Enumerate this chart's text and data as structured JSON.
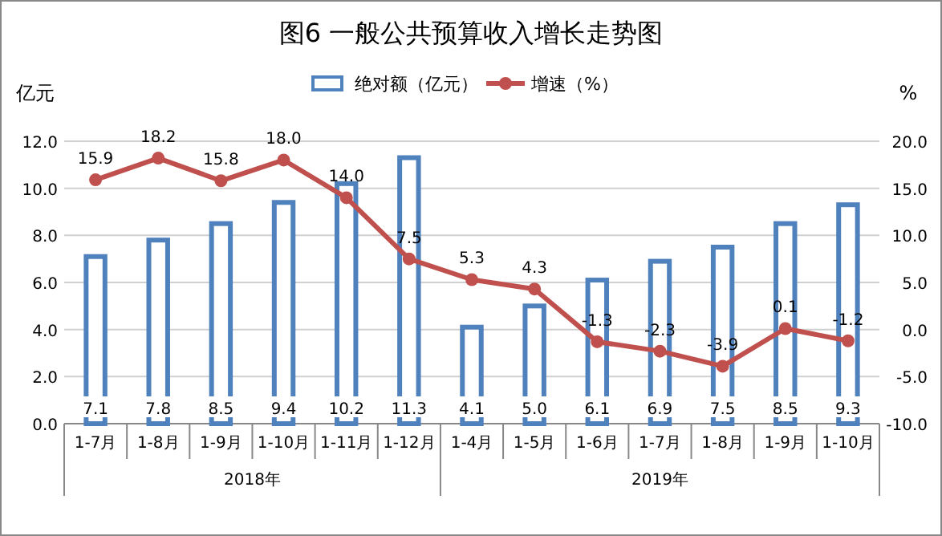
{
  "chart_data": {
    "type": "bar",
    "title": "图6  一般公共预算收入增长走势图",
    "ylabel": "亿元",
    "y2label": "%",
    "categories": [
      "1-7月",
      "1-8月",
      "1-9月",
      "1-10月",
      "1-11月",
      "1-12月",
      "1-4月",
      "1-5月",
      "1-6月",
      "1-7月",
      "1-8月",
      "1-9月",
      "1-10月"
    ],
    "series": [
      {
        "name": "绝对额（亿元）",
        "color": "#4f81bd",
        "values": [
          7.1,
          7.8,
          8.5,
          9.4,
          10.2,
          11.3,
          4.1,
          5.0,
          6.1,
          6.9,
          7.5,
          8.5,
          9.3
        ],
        "value_labels": [
          "7.1",
          "7.8",
          "8.5",
          "9.4",
          "10.2",
          "11.3",
          "4.1",
          "5.0",
          "6.1",
          "6.9",
          "7.5",
          "8.5",
          "9.3"
        ]
      },
      {
        "name": "增速（%）",
        "type": "line",
        "axis": "y2",
        "color": "#c0504d",
        "values": [
          15.9,
          18.2,
          15.8,
          18.0,
          14.0,
          7.5,
          5.3,
          4.3,
          -1.3,
          -2.3,
          -3.9,
          0.1,
          -1.2
        ],
        "value_labels": [
          "15.9",
          "18.2",
          "15.8",
          "18.0",
          "14.0",
          "7.5",
          "5.3",
          "4.3",
          "-1.3",
          "-2.3",
          "-3.9",
          "0.1",
          "-1.2"
        ]
      }
    ],
    "ylim": [
      0,
      12
    ],
    "yticks": [
      {
        "value": 0,
        "label": "0.0"
      },
      {
        "value": 2,
        "label": "2.0"
      },
      {
        "value": 4,
        "label": "4.0"
      },
      {
        "value": 6,
        "label": "6.0"
      },
      {
        "value": 8,
        "label": "8.0"
      },
      {
        "value": 10,
        "label": "10.0"
      },
      {
        "value": 12,
        "label": "12.0"
      }
    ],
    "y2lim": [
      -10,
      20
    ],
    "y2ticks": [
      {
        "value": -10,
        "label": "-10.0"
      },
      {
        "value": -5,
        "label": "-5.0"
      },
      {
        "value": 0,
        "label": "0.0"
      },
      {
        "value": 5,
        "label": "5.0"
      },
      {
        "value": 10,
        "label": "10.0"
      },
      {
        "value": 15,
        "label": "15.0"
      },
      {
        "value": 20,
        "label": "20.0"
      }
    ],
    "annotations": [
      "2018年",
      "2019年"
    ],
    "grid": "y",
    "legend": "top",
    "marker": "circle"
  }
}
